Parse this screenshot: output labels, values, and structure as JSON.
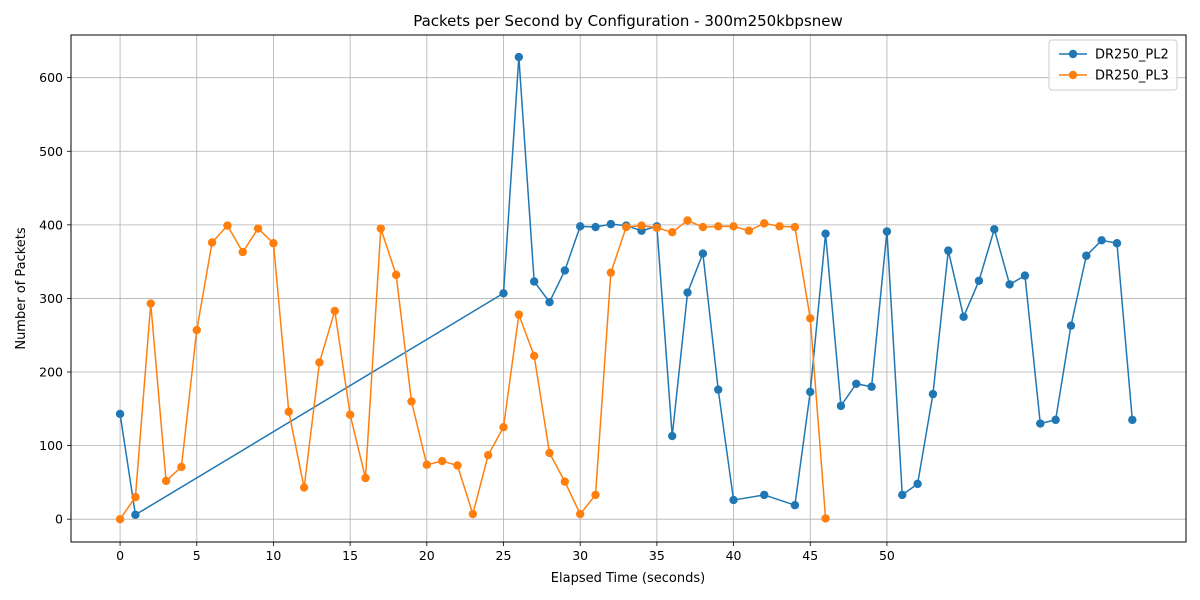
{
  "chart_data": {
    "type": "line",
    "title": "Packets per Second by Configuration - 300m250kbpsnew",
    "xlabel": "Elapsed Time (seconds)",
    "ylabel": "Number of Packets",
    "xlim": [
      -3.2,
      69.5
    ],
    "ylim": [
      -31,
      658
    ],
    "xticks": [
      0,
      5,
      10,
      15,
      20,
      25,
      30,
      35,
      40,
      45,
      50
    ],
    "yticks": [
      0,
      100,
      200,
      300,
      400,
      500,
      600
    ],
    "grid": true,
    "legend_position": "top-right",
    "series": [
      {
        "name": "DR250_PL2",
        "color": "#1f77b4",
        "points": [
          [
            0,
            143
          ],
          [
            1,
            6
          ],
          [
            25,
            307
          ],
          [
            26,
            628
          ],
          [
            27,
            323
          ],
          [
            28,
            295
          ],
          [
            29,
            338
          ],
          [
            30,
            398
          ],
          [
            31,
            397
          ],
          [
            32,
            401
          ],
          [
            33,
            399
          ],
          [
            34,
            392
          ],
          [
            35,
            398
          ],
          [
            36,
            113
          ],
          [
            37,
            308
          ],
          [
            38,
            361
          ],
          [
            39,
            176
          ],
          [
            40,
            26
          ],
          [
            42,
            33
          ],
          [
            44,
            19
          ],
          [
            45,
            173
          ],
          [
            46,
            388
          ],
          [
            47,
            154
          ],
          [
            48,
            184
          ],
          [
            49,
            180
          ],
          [
            50,
            391
          ],
          [
            51,
            33
          ],
          [
            52,
            48
          ],
          [
            53,
            170
          ],
          [
            54,
            365
          ],
          [
            55,
            275
          ],
          [
            56,
            324
          ],
          [
            57,
            394
          ],
          [
            58,
            319
          ],
          [
            59,
            331
          ],
          [
            60,
            130
          ],
          [
            61,
            135
          ],
          [
            62,
            263
          ],
          [
            63,
            358
          ],
          [
            64,
            379
          ],
          [
            65,
            375
          ],
          [
            66,
            135
          ]
        ]
      },
      {
        "name": "DR250_PL3",
        "color": "#ff7f0e",
        "points": [
          [
            0,
            0
          ],
          [
            1,
            30
          ],
          [
            2,
            293
          ],
          [
            3,
            52
          ],
          [
            4,
            71
          ],
          [
            5,
            257
          ],
          [
            6,
            376
          ],
          [
            7,
            399
          ],
          [
            8,
            363
          ],
          [
            9,
            395
          ],
          [
            10,
            375
          ],
          [
            11,
            146
          ],
          [
            12,
            43
          ],
          [
            13,
            213
          ],
          [
            14,
            283
          ],
          [
            15,
            142
          ],
          [
            16,
            56
          ],
          [
            17,
            395
          ],
          [
            18,
            332
          ],
          [
            19,
            160
          ],
          [
            20,
            74
          ],
          [
            21,
            79
          ],
          [
            22,
            73
          ],
          [
            23,
            7
          ],
          [
            24,
            87
          ],
          [
            25,
            125
          ],
          [
            26,
            278
          ],
          [
            27,
            222
          ],
          [
            28,
            90
          ],
          [
            29,
            51
          ],
          [
            30,
            7
          ],
          [
            31,
            33
          ],
          [
            32,
            335
          ],
          [
            33,
            397
          ],
          [
            34,
            399
          ],
          [
            35,
            396
          ],
          [
            36,
            390
          ],
          [
            37,
            406
          ],
          [
            38,
            397
          ],
          [
            39,
            398
          ],
          [
            40,
            398
          ],
          [
            41,
            392
          ],
          [
            42,
            402
          ],
          [
            43,
            398
          ],
          [
            44,
            397
          ],
          [
            45,
            273
          ],
          [
            46,
            1
          ]
        ]
      }
    ]
  }
}
